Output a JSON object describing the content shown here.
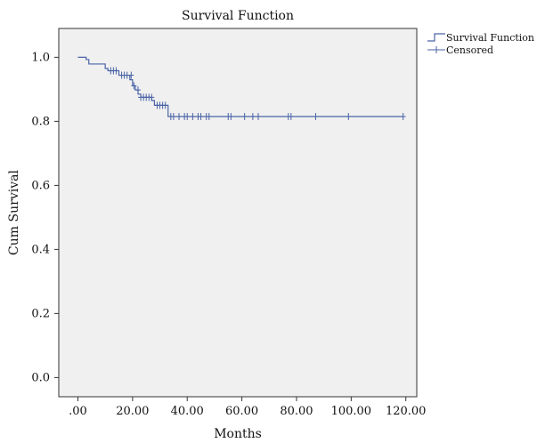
{
  "chart_data": {
    "type": "line",
    "subtype": "kaplan-meier",
    "title": "Survival Function",
    "xlabel": "Months",
    "ylabel": "Cum Survival",
    "xlim": [
      -7,
      124
    ],
    "ylim": [
      -0.06,
      1.09
    ],
    "x_ticks": [
      0,
      20,
      40,
      60,
      80,
      100,
      120
    ],
    "x_tick_labels": [
      ".00",
      "20.00",
      "40.00",
      "60.00",
      "80.00",
      "100.00",
      "120.00"
    ],
    "y_ticks": [
      0,
      0.2,
      0.4,
      0.6,
      0.8,
      1.0
    ],
    "y_tick_labels": [
      "0.0",
      "0.2",
      "0.4",
      "0.6",
      "0.8",
      "1.0"
    ],
    "grid": false,
    "legend_position": "top-right",
    "line_color": "#4a63a6",
    "plot_background": "#f0f0f0",
    "series": [
      {
        "name": "Survival Function",
        "kind": "step",
        "points": [
          [
            0,
            1.0
          ],
          [
            3,
            0.993
          ],
          [
            4,
            0.979
          ],
          [
            10,
            0.965
          ],
          [
            11,
            0.958
          ],
          [
            15,
            0.944
          ],
          [
            19,
            0.93
          ],
          [
            20,
            0.911
          ],
          [
            21,
            0.898
          ],
          [
            22,
            0.885
          ],
          [
            23,
            0.875
          ],
          [
            27,
            0.865
          ],
          [
            28,
            0.85
          ],
          [
            33,
            0.815
          ],
          [
            119,
            0.815
          ]
        ]
      },
      {
        "name": "Censored",
        "kind": "markers",
        "points": [
          [
            12,
            0.958
          ],
          [
            13,
            0.958
          ],
          [
            14,
            0.958
          ],
          [
            16,
            0.944
          ],
          [
            17,
            0.944
          ],
          [
            18,
            0.944
          ],
          [
            19.5,
            0.944
          ],
          [
            20.5,
            0.911
          ],
          [
            22,
            0.898
          ],
          [
            23,
            0.875
          ],
          [
            24,
            0.875
          ],
          [
            25,
            0.875
          ],
          [
            26,
            0.875
          ],
          [
            27,
            0.875
          ],
          [
            29,
            0.85
          ],
          [
            30,
            0.85
          ],
          [
            31,
            0.85
          ],
          [
            32,
            0.85
          ],
          [
            34,
            0.815
          ],
          [
            35,
            0.815
          ],
          [
            37,
            0.815
          ],
          [
            39,
            0.815
          ],
          [
            40,
            0.815
          ],
          [
            42,
            0.815
          ],
          [
            44,
            0.815
          ],
          [
            45,
            0.815
          ],
          [
            47,
            0.815
          ],
          [
            48,
            0.815
          ],
          [
            55,
            0.815
          ],
          [
            56,
            0.815
          ],
          [
            61,
            0.815
          ],
          [
            64,
            0.815
          ],
          [
            66,
            0.815
          ],
          [
            77,
            0.815
          ],
          [
            78,
            0.815
          ],
          [
            87,
            0.815
          ],
          [
            99,
            0.815
          ],
          [
            119,
            0.815
          ]
        ]
      }
    ]
  }
}
